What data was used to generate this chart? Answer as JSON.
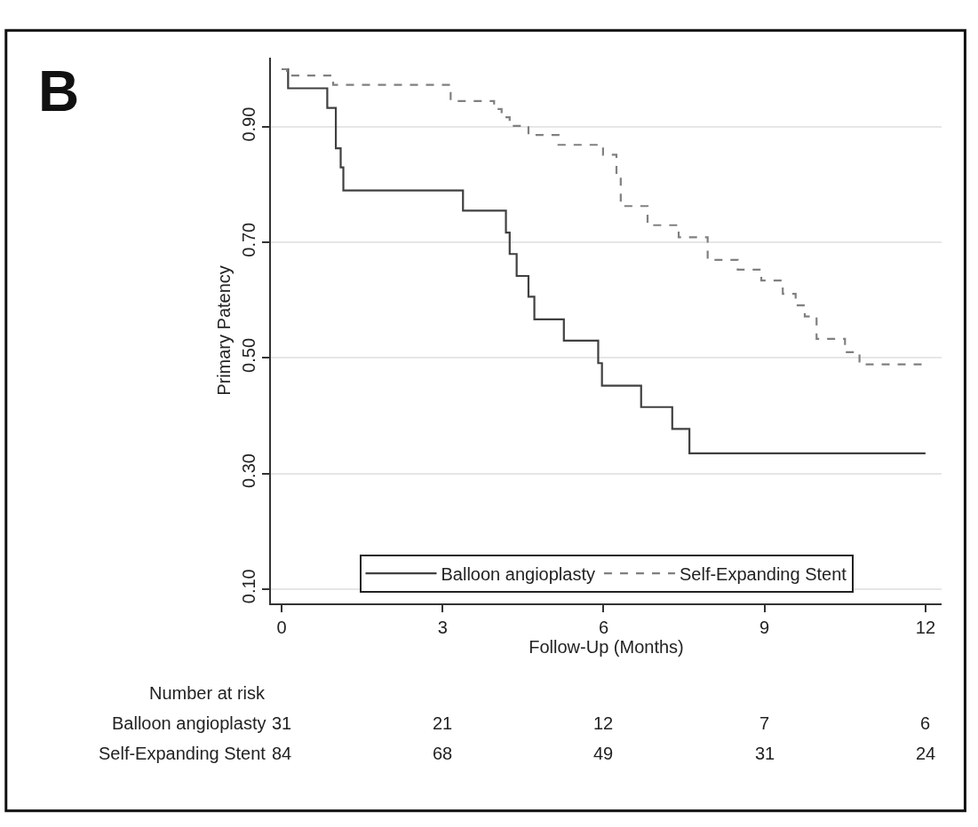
{
  "chart_data": {
    "type": "step",
    "title": "B",
    "xlabel": "Follow-Up (Months)",
    "ylabel": "Primary Patency",
    "xlim": [
      -0.2,
      12.3
    ],
    "xticks": [
      0,
      3,
      6,
      9,
      12
    ],
    "ylim": [
      0.075,
      1.02
    ],
    "yticks": [
      {
        "value": 0.1,
        "label": "0.10"
      },
      {
        "value": 0.3,
        "label": "0.30"
      },
      {
        "value": 0.5,
        "label": "0.50"
      },
      {
        "value": 0.7,
        "label": "0.70"
      },
      {
        "value": 0.9,
        "label": "0.90"
      }
    ],
    "grid": "y",
    "legend": "bottom",
    "marker": "none",
    "series": [
      {
        "name": "Balloon angioplasty",
        "color": "#404040",
        "line_style": "solid",
        "x": [
          0,
          0.12,
          0.85,
          1.01,
          1.1,
          1.15,
          3.38,
          4.18,
          4.25,
          4.38,
          4.6,
          4.71,
          5.26,
          5.9,
          5.97,
          6.7,
          7.28,
          7.6,
          12
        ],
        "values": [
          1.0,
          0.967,
          0.933,
          0.863,
          0.83,
          0.79,
          0.755,
          0.717,
          0.68,
          0.642,
          0.606,
          0.567,
          0.53,
          0.491,
          0.452,
          0.415,
          0.377,
          0.335,
          0.335
        ]
      },
      {
        "name": "Self-Expanding Stent",
        "color": "#808080",
        "line_style": "dashed",
        "x": [
          0,
          0.1,
          0.96,
          3.15,
          3.96,
          4.1,
          4.25,
          4.6,
          5.16,
          5.99,
          6.24,
          6.32,
          6.82,
          7.4,
          7.94,
          8.5,
          8.94,
          9.34,
          9.58,
          9.75,
          9.97,
          10.5,
          10.77,
          12
        ],
        "values": [
          1.0,
          0.989,
          0.973,
          0.945,
          0.931,
          0.917,
          0.902,
          0.886,
          0.869,
          0.852,
          0.816,
          0.763,
          0.73,
          0.709,
          0.67,
          0.653,
          0.634,
          0.611,
          0.591,
          0.572,
          0.533,
          0.51,
          0.489,
          0.489
        ]
      }
    ],
    "annotations": [
      "Number at risk",
      "Balloon angioplasty",
      "31",
      "21",
      "12",
      "7",
      "6",
      "Self-Expanding Stent",
      "84",
      "68",
      "49",
      "31",
      "24"
    ]
  }
}
